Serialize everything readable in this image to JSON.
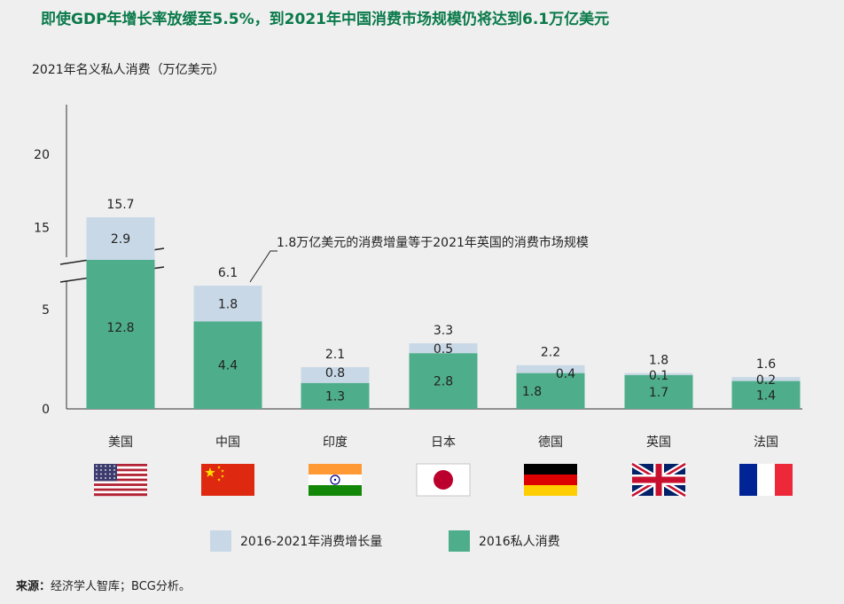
{
  "title": "即使GDP年增长率放缓至5.5%，到2021年中国消费市场规模仍将达到6.1万亿美元",
  "source": {
    "label": "来源：",
    "text": "经济学人智库；BCG分析。"
  },
  "colors": {
    "growth": "#c9d8e6",
    "base": "#4eae8c",
    "title": "#0a7a4a"
  },
  "chart_data": {
    "type": "bar",
    "stacked": true,
    "title": "即使GDP年增长率放缓至5.5%，到2021年中国消费市场规模仍将达到6.1万亿美元",
    "ylabel": "2021年名义私人消费（万亿美元）",
    "xlabel": "",
    "yticks": [
      0,
      5,
      15,
      20
    ],
    "axis_break": true,
    "categories": [
      "美国",
      "中国",
      "印度",
      "日本",
      "德国",
      "英国",
      "法国"
    ],
    "flags": [
      "usa-flag-icon",
      "china-flag-icon",
      "india-flag-icon",
      "japan-flag-icon",
      "germany-flag-icon",
      "uk-flag-icon",
      "france-flag-icon"
    ],
    "series": [
      {
        "name": "2016私人消费",
        "values": [
          12.8,
          4.4,
          1.3,
          2.8,
          1.8,
          1.7,
          1.4
        ]
      },
      {
        "name": "2016-2021年消费增长量",
        "values": [
          2.9,
          1.8,
          0.8,
          0.5,
          0.4,
          0.1,
          0.2
        ]
      }
    ],
    "totals": [
      15.7,
      6.1,
      2.1,
      3.3,
      2.2,
      1.8,
      1.6
    ],
    "annotation": "1.8万亿美元的消费增量等于2021年英国的消费市场规模",
    "legend_position": "bottom"
  }
}
